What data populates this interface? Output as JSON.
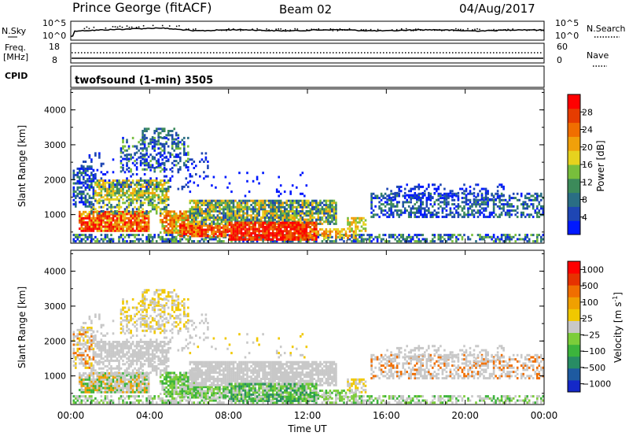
{
  "header": {
    "radar": "Prince George (fitACF)",
    "beam": "Beam 02",
    "date": "04/Aug/2017"
  },
  "top_panels": {
    "nsky_label": "N.Sky",
    "nsearch_label": "N.Search",
    "noise_ticks_left": [
      "10^5",
      "10^0"
    ],
    "noise_ticks_right": [
      "10^5",
      "10^0"
    ],
    "freq_label": "Freq.",
    "freq_unit": "[MHz]",
    "freq_ticks": [
      "18",
      "8"
    ],
    "nave_label": "Nave",
    "nave_ticks": [
      "60",
      "0"
    ],
    "cpid_label": "CPID",
    "cpid_value": "twofsound (1-min) 3505"
  },
  "chart_data": [
    {
      "type": "heatmap",
      "name": "power",
      "ylabel": "Slant Range [km]",
      "xlabel": "Time UT",
      "ylim": [
        180,
        4600
      ],
      "xlim": [
        0,
        24
      ],
      "y_ticks": [
        "1000",
        "2000",
        "3000",
        "4000"
      ],
      "x_ticks": [
        "00:00",
        "04:00",
        "08:00",
        "12:00",
        "16:00",
        "20:00",
        "00:00"
      ],
      "colorbar": {
        "label": "Power [dB]",
        "ticks": [
          "4",
          "8",
          "12",
          "16",
          "20",
          "24",
          "28"
        ],
        "colors": [
          "#0019ff",
          "#1e46b4",
          "#2a6e84",
          "#3c8a5a",
          "#78be3c",
          "#e6d21e",
          "#f0a00a",
          "#f06e00",
          "#e63c00",
          "#ff0000"
        ]
      }
    },
    {
      "type": "heatmap",
      "name": "velocity",
      "ylabel": "Slant Range [km]",
      "xlabel": "Time UT",
      "ylim": [
        180,
        4600
      ],
      "xlim": [
        0,
        24
      ],
      "y_ticks": [
        "1000",
        "2000",
        "3000",
        "4000"
      ],
      "x_ticks": [
        "00:00",
        "04:00",
        "08:00",
        "12:00",
        "16:00",
        "20:00",
        "00:00"
      ],
      "colorbar": {
        "label": "Velocity [m s",
        "label_sup": "-1",
        "label_close": "]",
        "ticks": [
          "1000",
          "500",
          "100",
          "25",
          "−25",
          "−100",
          "−500",
          "−1000"
        ],
        "colors": [
          "#1428c8",
          "#1e5aa0",
          "#288c64",
          "#3cb43c",
          "#7ccd3a",
          "#c8c8c8",
          "#f0c800",
          "#f0a000",
          "#f06e00",
          "#e63200",
          "#ff0000"
        ]
      }
    }
  ]
}
